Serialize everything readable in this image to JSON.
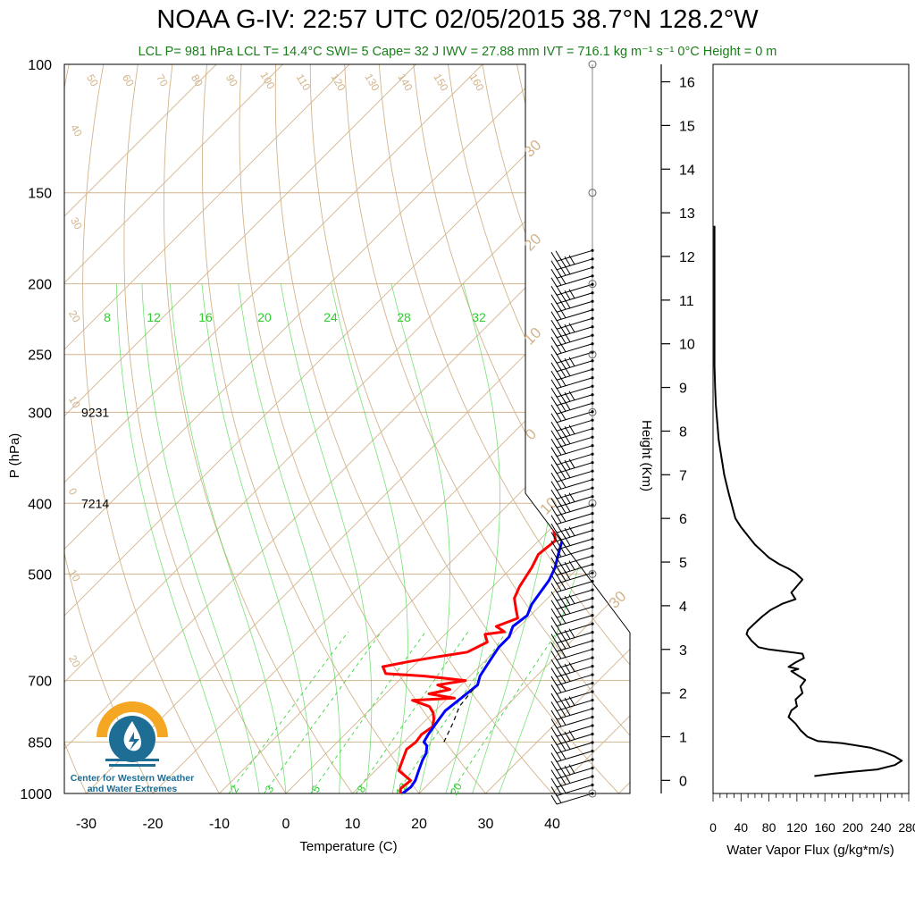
{
  "title": "NOAA G-IV: 22:57 UTC 02/05/2015  38.7°N 128.2°W",
  "subtitle": "LCL P= 981 hPa  LCL T= 14.4°C  SWI= 5  Cape= 32 J  IWV = 27.88 mm  IVT = 716.1 kg m⁻¹ s⁻¹  0°C Height = 0 m",
  "logo": {
    "line1": "Center for Western Weather",
    "line2": "and Water Extremes"
  },
  "colors": {
    "temperature": "#ff0000",
    "dewpoint": "#0000ff",
    "isotherm": "#d2b48c",
    "dry_adiabat": "#d2b48c",
    "moist_adiabat": "#3fd43f",
    "mixing_ratio": "#3fd43f",
    "subtitle": "#1a7d1a",
    "logo_blue": "#1d6d94",
    "logo_orange": "#f5a623"
  },
  "chart_data": [
    {
      "type": "line",
      "name": "skew-t",
      "xlabel": "Temperature (C)",
      "ylabel": "P (hPa)",
      "log_scale_y": true,
      "xlim": [
        -35,
        40
      ],
      "ylim": [
        1000,
        100
      ],
      "x_ticks": [
        "-30",
        "-20",
        "-10",
        "0",
        "10",
        "20",
        "30",
        "40"
      ],
      "y_ticks": [
        "100",
        "150",
        "200",
        "250",
        "300",
        "400",
        "500",
        "700",
        "850",
        "1000"
      ],
      "height_annotations": [
        {
          "p": 300,
          "label": "9231"
        },
        {
          "p": 400,
          "label": "7214"
        }
      ],
      "mixing_ratio_labels_top": [
        "8",
        "12",
        "16",
        "20",
        "24",
        "28",
        "32"
      ],
      "mixing_ratio_labels_bottom": [
        "2",
        "3",
        "5",
        "8",
        "12",
        "20"
      ],
      "dry_adiabat_labels": [
        "50",
        "60",
        "70",
        "80",
        "90",
        "100",
        "110",
        "120",
        "130",
        "140",
        "150",
        "160",
        "40",
        "30",
        "20",
        "10",
        "0",
        "10",
        "20"
      ],
      "isotherm_side_labels": [
        "30",
        "20",
        "10",
        "0",
        "10",
        "30"
      ],
      "series": [
        {
          "name": "temperature",
          "points": [
            [
              17.2,
              1000
            ],
            [
              16.5,
              985
            ],
            [
              16.8,
              960
            ],
            [
              13.5,
              930
            ],
            [
              12.5,
              900
            ],
            [
              11.5,
              870
            ],
            [
              11.8,
              850
            ],
            [
              11.5,
              830
            ],
            [
              12.0,
              810
            ],
            [
              11.0,
              790
            ],
            [
              10.0,
              775
            ],
            [
              8.5,
              760
            ],
            [
              5.0,
              745
            ],
            [
              11.0,
              740
            ],
            [
              6.5,
              730
            ],
            [
              9.0,
              720
            ],
            [
              6.5,
              710
            ],
            [
              10.0,
              700
            ],
            [
              3.0,
              690
            ],
            [
              -3.0,
              685
            ],
            [
              -4.5,
              670
            ],
            [
              -1.5,
              660
            ],
            [
              2.0,
              650
            ],
            [
              6.0,
              640
            ],
            [
              7.5,
              620
            ],
            [
              6.0,
              605
            ],
            [
              8.5,
              600
            ],
            [
              6.5,
              590
            ],
            [
              8.5,
              575
            ],
            [
              7.0,
              560
            ],
            [
              5.0,
              540
            ],
            [
              4.0,
              520
            ],
            [
              3.0,
              490
            ],
            [
              2.0,
              470
            ],
            [
              2.5,
              450
            ],
            [
              0.0,
              430
            ],
            [
              -0.5,
              410
            ],
            [
              -1.5,
              395
            ],
            [
              -3.0,
              380
            ],
            [
              -4.5,
              365
            ],
            [
              -5.5,
              350
            ],
            [
              -7.5,
              335
            ],
            [
              -9.0,
              320
            ],
            [
              -10.5,
              310
            ],
            [
              -12.0,
              300
            ],
            [
              -14.5,
              295
            ],
            [
              -19.5,
              285
            ],
            [
              -19.8,
              280
            ],
            [
              -19.0,
              275
            ],
            [
              -18.0,
              265
            ],
            [
              -16.5,
              258
            ],
            [
              -15.0,
              250
            ],
            [
              -13.0,
              242
            ],
            [
              -11.5,
              232
            ],
            [
              -10.0,
              223
            ],
            [
              -9.5,
              212
            ],
            [
              -9.5,
              205
            ],
            [
              -8.0,
              198
            ],
            [
              -7.5,
              190
            ],
            [
              -8.0,
              180
            ],
            [
              -8.0,
              172
            ]
          ]
        },
        {
          "name": "dewpoint",
          "points": [
            [
              17.5,
              1000
            ],
            [
              17.8,
              980
            ],
            [
              17.5,
              960
            ],
            [
              16.5,
              930
            ],
            [
              15.5,
              900
            ],
            [
              15.0,
              880
            ],
            [
              14.0,
              860
            ],
            [
              13.0,
              850
            ],
            [
              12.5,
              830
            ],
            [
              12.0,
              800
            ],
            [
              11.5,
              770
            ],
            [
              12.0,
              740
            ],
            [
              12.5,
              710
            ],
            [
              11.5,
              690
            ],
            [
              11.0,
              670
            ],
            [
              10.5,
              650
            ],
            [
              10.0,
              630
            ],
            [
              10.0,
              610
            ],
            [
              9.0,
              590
            ],
            [
              9.5,
              570
            ],
            [
              8.5,
              550
            ],
            [
              8.0,
              530
            ],
            [
              7.5,
              510
            ],
            [
              6.5,
              490
            ],
            [
              5.0,
              470
            ],
            [
              3.5,
              450
            ],
            [
              2.5,
              430
            ],
            [
              1.0,
              410
            ],
            [
              0.0,
              395
            ],
            [
              -1.0,
              380
            ],
            [
              -2.0,
              360
            ],
            [
              -3.0,
              345
            ],
            [
              -4.0,
              330
            ],
            [
              -5.0,
              315
            ],
            [
              -6.0,
              300
            ],
            [
              -6.0,
              295
            ],
            [
              -5.5,
              290
            ],
            [
              -5.0,
              285
            ],
            [
              -4.0,
              280
            ],
            [
              -3.0,
              270
            ],
            [
              -2.0,
              262
            ],
            [
              -1.0,
              255
            ],
            [
              0.0,
              250
            ],
            [
              1.0,
              243
            ],
            [
              2.5,
              235
            ],
            [
              3.5,
              228
            ],
            [
              4.5,
              220
            ],
            [
              5.0,
              212
            ],
            [
              5.5,
              205
            ],
            [
              6.5,
              200
            ],
            [
              7.0,
              195
            ],
            [
              7.0,
              188
            ],
            [
              7.5,
              180
            ],
            [
              7.5,
              173
            ]
          ]
        },
        {
          "name": "parcel (dashed)",
          "points": [
            [
              16.0,
              850
            ],
            [
              14.5,
              800
            ],
            [
              13.0,
              760
            ],
            [
              12.5,
              720
            ]
          ]
        }
      ],
      "wind_barbs": {
        "count": 65,
        "p_range": [
          1000,
          180
        ]
      }
    },
    {
      "type": "line",
      "name": "water vapor flux",
      "xlabel": "Water Vapor Flux (g/kg*m/s)",
      "ylabel": "Height (Km)",
      "xlim": [
        0,
        280
      ],
      "ylim": [
        -0.3,
        16.4
      ],
      "x_ticks": [
        "0",
        "40",
        "80",
        "120",
        "160",
        "200",
        "240",
        "280"
      ],
      "y_ticks": [
        "0",
        "1",
        "2",
        "3",
        "4",
        "5",
        "6",
        "7",
        "8",
        "9",
        "10",
        "11",
        "12",
        "13",
        "14",
        "15",
        "16"
      ],
      "points": [
        [
          145,
          0.1
        ],
        [
          170,
          0.15
        ],
        [
          200,
          0.2
        ],
        [
          235,
          0.25
        ],
        [
          260,
          0.35
        ],
        [
          270,
          0.45
        ],
        [
          260,
          0.55
        ],
        [
          245,
          0.65
        ],
        [
          225,
          0.75
        ],
        [
          185,
          0.85
        ],
        [
          150,
          0.9
        ],
        [
          135,
          1.0
        ],
        [
          125,
          1.15
        ],
        [
          118,
          1.3
        ],
        [
          108,
          1.45
        ],
        [
          112,
          1.6
        ],
        [
          120,
          1.7
        ],
        [
          118,
          1.85
        ],
        [
          128,
          2.0
        ],
        [
          125,
          2.15
        ],
        [
          132,
          2.3
        ],
        [
          122,
          2.4
        ],
        [
          112,
          2.5
        ],
        [
          122,
          2.55
        ],
        [
          108,
          2.6
        ],
        [
          118,
          2.7
        ],
        [
          130,
          2.8
        ],
        [
          128,
          2.9
        ],
        [
          105,
          2.95
        ],
        [
          80,
          3.0
        ],
        [
          65,
          3.05
        ],
        [
          55,
          3.2
        ],
        [
          48,
          3.35
        ],
        [
          50,
          3.45
        ],
        [
          60,
          3.6
        ],
        [
          70,
          3.75
        ],
        [
          82,
          3.9
        ],
        [
          100,
          4.05
        ],
        [
          118,
          4.15
        ],
        [
          112,
          4.3
        ],
        [
          120,
          4.45
        ],
        [
          128,
          4.6
        ],
        [
          118,
          4.75
        ],
        [
          108,
          4.85
        ],
        [
          95,
          4.95
        ],
        [
          80,
          5.1
        ],
        [
          70,
          5.25
        ],
        [
          60,
          5.4
        ],
        [
          50,
          5.6
        ],
        [
          40,
          5.8
        ],
        [
          32,
          6.0
        ],
        [
          27,
          6.3
        ],
        [
          22,
          6.6
        ],
        [
          16,
          7.0
        ],
        [
          12,
          7.4
        ],
        [
          8,
          7.8
        ],
        [
          6,
          8.2
        ],
        [
          4,
          8.6
        ],
        [
          3,
          9.0
        ],
        [
          2,
          9.5
        ],
        [
          2,
          10.0
        ],
        [
          2,
          11.0
        ],
        [
          2,
          12.0
        ],
        [
          2,
          12.7
        ]
      ]
    }
  ]
}
